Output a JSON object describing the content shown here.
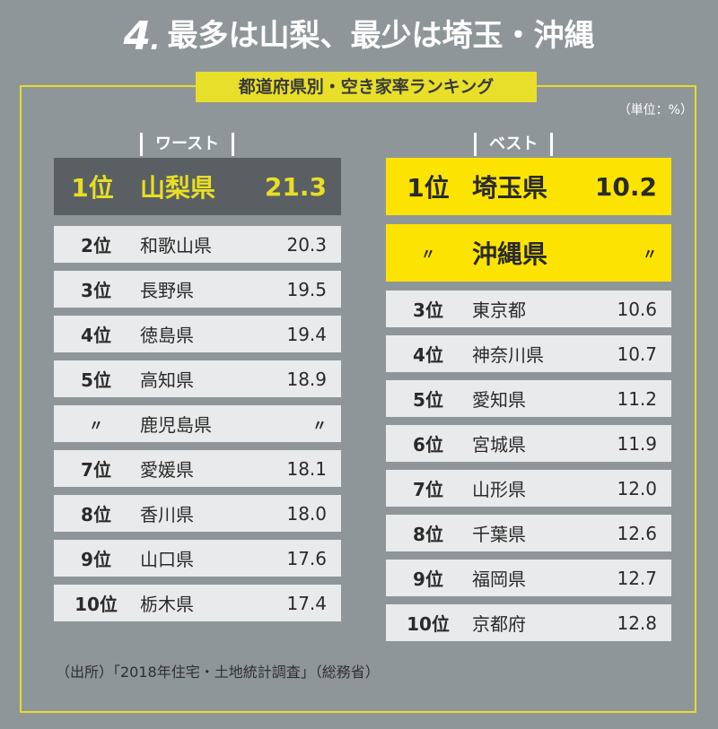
{
  "title": {
    "number": "4",
    "dot": ".",
    "text": "最多は山梨、最少は埼玉・沖縄"
  },
  "subtitle": "都道府県別・空き家率ランキング",
  "unit": "（単位：%）",
  "worst": {
    "header": "ワースト",
    "rows": [
      {
        "rank": "1位",
        "name": "山梨県",
        "value": "21.3"
      },
      {
        "rank": "2位",
        "name": "和歌山県",
        "value": "20.3"
      },
      {
        "rank": "3位",
        "name": "長野県",
        "value": "19.5"
      },
      {
        "rank": "4位",
        "name": "徳島県",
        "value": "19.4"
      },
      {
        "rank": "5位",
        "name": "高知県",
        "value": "18.9"
      },
      {
        "rank": "〃",
        "name": "鹿児島県",
        "value": "〃"
      },
      {
        "rank": "7位",
        "name": "愛媛県",
        "value": "18.1"
      },
      {
        "rank": "8位",
        "name": "香川県",
        "value": "18.0"
      },
      {
        "rank": "9位",
        "name": "山口県",
        "value": "17.6"
      },
      {
        "rank": "10位",
        "name": "栃木県",
        "value": "17.4"
      }
    ]
  },
  "best": {
    "header": "ベスト",
    "rows": [
      {
        "rank": "1位",
        "name": "埼玉県",
        "value": "10.2"
      },
      {
        "rank": "〃",
        "name": "沖縄県",
        "value": "〃"
      },
      {
        "rank": "3位",
        "name": "東京都",
        "value": "10.6"
      },
      {
        "rank": "4位",
        "name": "神奈川県",
        "value": "10.7"
      },
      {
        "rank": "5位",
        "name": "愛知県",
        "value": "11.2"
      },
      {
        "rank": "6位",
        "name": "宮城県",
        "value": "11.9"
      },
      {
        "rank": "7位",
        "name": "山形県",
        "value": "12.0"
      },
      {
        "rank": "8位",
        "name": "千葉県",
        "value": "12.6"
      },
      {
        "rank": "9位",
        "name": "福岡県",
        "value": "12.7"
      },
      {
        "rank": "10位",
        "name": "京都府",
        "value": "12.8"
      }
    ]
  },
  "source": "（出所）「2018年住宅・土地統計調査」（総務省）",
  "colors": {
    "background": "#8f969a",
    "accent_yellow": "#fce400",
    "dark_header": "#5a5f63",
    "row_bg": "#e9eaeb"
  }
}
